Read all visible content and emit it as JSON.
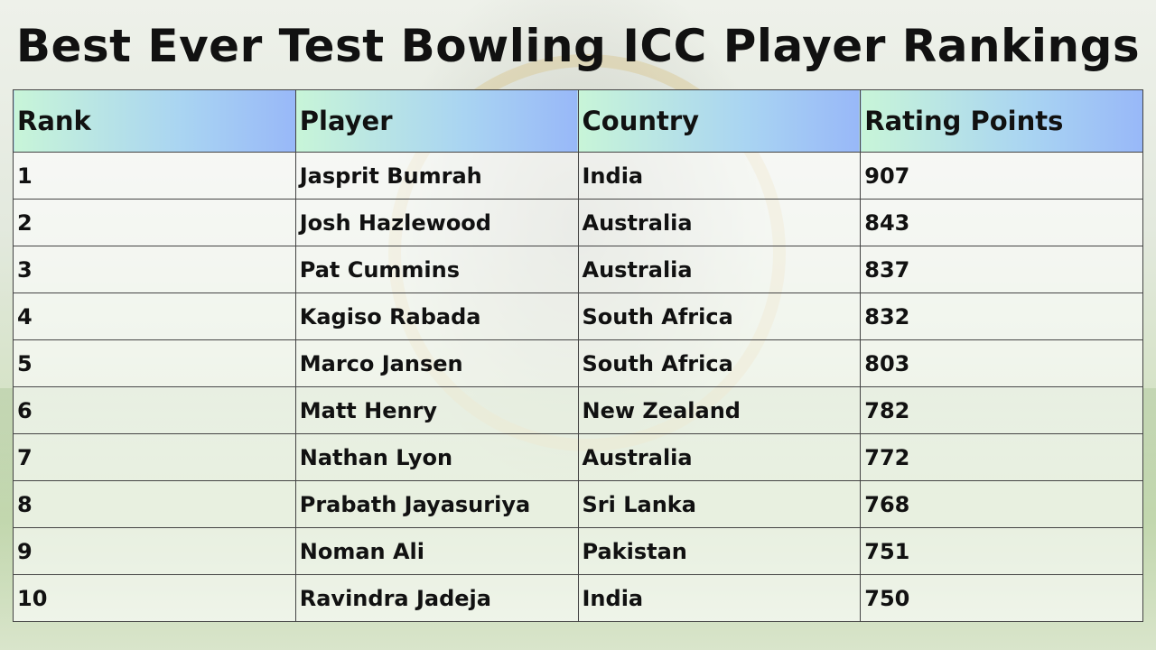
{
  "header": {
    "title": "Best Ever Test Bowling ICC Player Rankings"
  },
  "table": {
    "headers": [
      "Rank",
      "Player",
      "Country",
      "Rating Points"
    ],
    "rows": [
      [
        1,
        "Jasprit Bumrah",
        "India",
        907
      ],
      [
        2,
        "Josh Hazlewood",
        "Australia",
        843
      ],
      [
        3,
        "Pat Cummins",
        "Australia",
        837
      ],
      [
        4,
        "Kagiso Rabada",
        "South Africa",
        832
      ],
      [
        5,
        "Marco Jansen",
        "South Africa",
        803
      ],
      [
        6,
        "Matt Henry",
        "New Zealand",
        782
      ],
      [
        7,
        "Nathan Lyon",
        "Australia",
        772
      ],
      [
        8,
        "Prabath Jayasuriya",
        "Sri Lanka",
        768
      ],
      [
        9,
        "Noman Ali",
        "Pakistan",
        751
      ],
      [
        10,
        "Ravindra Jadeja",
        "India",
        750
      ]
    ]
  }
}
